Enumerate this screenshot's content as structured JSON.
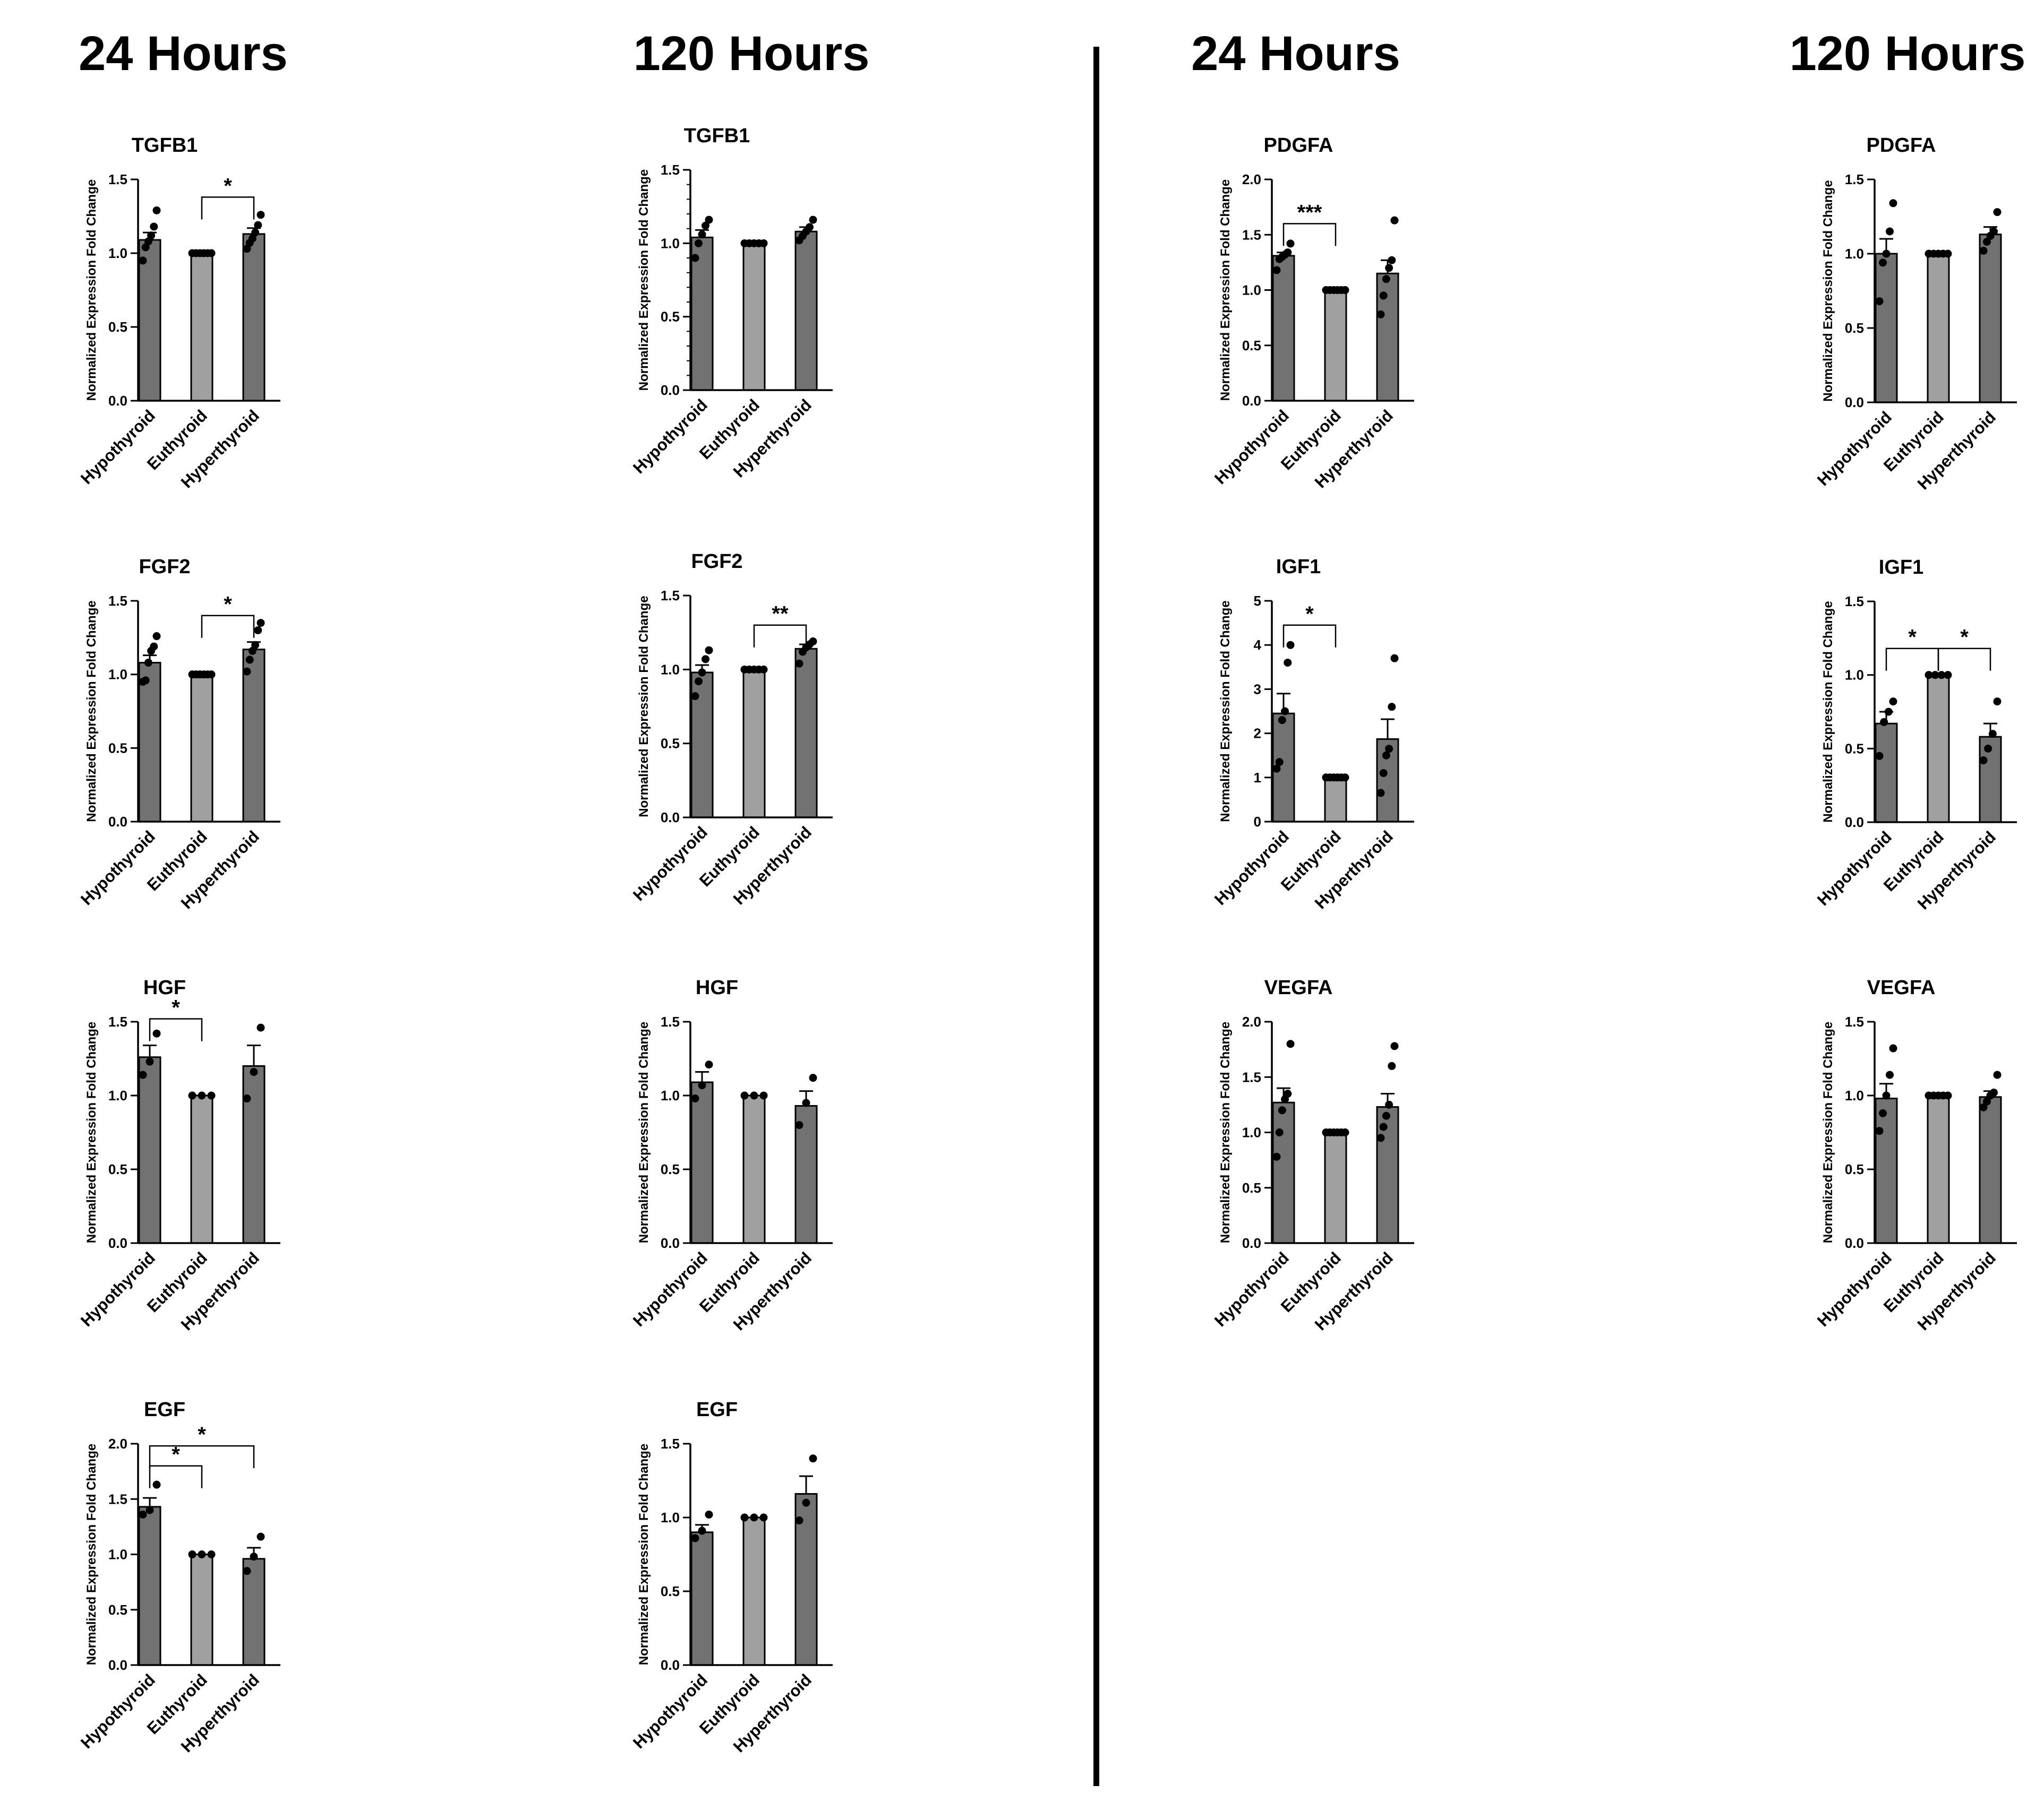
{
  "headers": [
    "24 Hours",
    "120 Hours",
    "24 Hours",
    "120 Hours"
  ],
  "colors": {
    "bar_dark": "#727272",
    "bar_light": "#a0a0a0",
    "ink": "#000000"
  },
  "chart_data": [
    {
      "type": "bar",
      "title": "TGFB1",
      "ylabel": "Normalized Expression Fold Change",
      "categories": [
        "Hypothyroid",
        "Euthyroid",
        "Hyperthyroid"
      ],
      "ylim": [
        0,
        1.5
      ],
      "yticks": [
        0.0,
        0.5,
        1.0,
        1.5
      ],
      "values": [
        1.09,
        1.0,
        1.13
      ],
      "errors": [
        0.05,
        0,
        0.04
      ],
      "points": [
        [
          0.95,
          1.04,
          1.08,
          1.12,
          1.18,
          1.29
        ],
        [
          1,
          1,
          1,
          1,
          1,
          1
        ],
        [
          1.03,
          1.07,
          1.1,
          1.14,
          1.19,
          1.26
        ]
      ],
      "sig": [
        {
          "from": 1,
          "to": 2,
          "label": "*",
          "level": 1.38
        }
      ]
    },
    {
      "type": "bar",
      "title": "TGFB1",
      "ylabel": "Normalized Expression Fold Change",
      "categories": [
        "Hypothyroid",
        "Euthyroid",
        "Hyperthyroid"
      ],
      "ylim": [
        0,
        1.5
      ],
      "yticks": [
        0.0,
        0.5,
        1.0,
        1.5
      ],
      "values": [
        1.04,
        1.0,
        1.08
      ],
      "errors": [
        0.05,
        0,
        0.03
      ],
      "points": [
        [
          0.9,
          1.0,
          1.06,
          1.12,
          1.16
        ],
        [
          1,
          1,
          1,
          1,
          1
        ],
        [
          1.02,
          1.05,
          1.08,
          1.11,
          1.16
        ]
      ],
      "sig": []
    },
    {
      "type": "bar",
      "title": "PDGFA",
      "ylabel": "Normalized Expression Fold Change",
      "categories": [
        "Hypothyroid",
        "Euthyroid",
        "Hyperthyroid"
      ],
      "ylim": [
        0,
        2.0
      ],
      "yticks": [
        0.0,
        0.5,
        1.0,
        1.5,
        2.0
      ],
      "values": [
        1.31,
        1.0,
        1.15
      ],
      "errors": [
        0.03,
        0,
        0.12
      ],
      "points": [
        [
          1.18,
          1.28,
          1.3,
          1.32,
          1.34,
          1.42
        ],
        [
          1,
          1,
          1,
          1,
          1,
          1
        ],
        [
          0.78,
          0.95,
          1.1,
          1.2,
          1.27,
          1.63
        ]
      ],
      "sig": [
        {
          "from": 0,
          "to": 1,
          "label": "***",
          "level": 1.6
        }
      ]
    },
    {
      "type": "bar",
      "title": "PDGFA",
      "ylabel": "Normalized Expression Fold Change",
      "categories": [
        "Hypothyroid",
        "Euthyroid",
        "Hyperthyroid"
      ],
      "ylim": [
        0,
        1.5
      ],
      "yticks": [
        0.0,
        0.5,
        1.0,
        1.5
      ],
      "values": [
        1.0,
        1.0,
        1.13
      ],
      "errors": [
        0.1,
        0,
        0.05
      ],
      "points": [
        [
          0.68,
          0.94,
          1.0,
          1.15,
          1.34
        ],
        [
          1,
          1,
          1,
          1,
          1
        ],
        [
          1.02,
          1.08,
          1.12,
          1.15,
          1.28
        ]
      ],
      "sig": []
    },
    {
      "type": "bar",
      "title": "FGF2",
      "ylabel": "Normalized Expression Fold Change",
      "categories": [
        "Hypothyroid",
        "Euthyroid",
        "Hyperthyroid"
      ],
      "ylim": [
        0,
        1.5
      ],
      "yticks": [
        0.0,
        0.5,
        1.0,
        1.5
      ],
      "values": [
        1.08,
        1.0,
        1.17
      ],
      "errors": [
        0.05,
        0,
        0.05
      ],
      "points": [
        [
          0.95,
          0.96,
          1.08,
          1.16,
          1.19,
          1.26
        ],
        [
          1,
          1,
          1,
          1,
          1,
          1
        ],
        [
          1.02,
          1.1,
          1.16,
          1.2,
          1.3,
          1.35
        ]
      ],
      "sig": [
        {
          "from": 1,
          "to": 2,
          "label": "*",
          "level": 1.4
        }
      ]
    },
    {
      "type": "bar",
      "title": "FGF2",
      "ylabel": "Normalized Expression Fold Change",
      "categories": [
        "Hypothyroid",
        "Euthyroid",
        "Hyperthyroid"
      ],
      "ylim": [
        0,
        1.5
      ],
      "yticks": [
        0.0,
        0.5,
        1.0,
        1.5
      ],
      "values": [
        0.98,
        1.0,
        1.14
      ],
      "errors": [
        0.05,
        0,
        0.03
      ],
      "points": [
        [
          0.82,
          0.92,
          0.98,
          1.07,
          1.13
        ],
        [
          1,
          1,
          1,
          1,
          1
        ],
        [
          1.04,
          1.12,
          1.15,
          1.17,
          1.19
        ]
      ],
      "sig": [
        {
          "from": 1,
          "to": 2,
          "label": "**",
          "level": 1.3
        }
      ]
    },
    {
      "type": "bar",
      "title": "IGF1",
      "ylabel": "Normalized Expression Fold Change",
      "categories": [
        "Hypothyroid",
        "Euthyroid",
        "Hyperthyroid"
      ],
      "ylim": [
        0,
        5
      ],
      "yticks": [
        0,
        1,
        2,
        3,
        4,
        5
      ],
      "values": [
        2.45,
        1.0,
        1.87
      ],
      "errors": [
        0.45,
        0,
        0.45
      ],
      "points": [
        [
          1.2,
          1.35,
          2.3,
          2.5,
          3.6,
          4.0
        ],
        [
          1,
          1,
          1,
          1,
          1,
          1
        ],
        [
          0.65,
          1.1,
          1.5,
          1.65,
          2.6,
          3.7
        ]
      ],
      "sig": [
        {
          "from": 0,
          "to": 1,
          "label": "*",
          "level": 4.45
        }
      ]
    },
    {
      "type": "bar",
      "title": "IGF1",
      "ylabel": "Normalized Expression Fold Change",
      "categories": [
        "Hypothyroid",
        "Euthyroid",
        "Hyperthyroid"
      ],
      "ylim": [
        0,
        1.5
      ],
      "yticks": [
        0.0,
        0.5,
        1.0,
        1.5
      ],
      "values": [
        0.67,
        1.0,
        0.58
      ],
      "errors": [
        0.08,
        0,
        0.09
      ],
      "points": [
        [
          0.45,
          0.68,
          0.75,
          0.82
        ],
        [
          1,
          1,
          1,
          1
        ],
        [
          0.42,
          0.5,
          0.6,
          0.82
        ]
      ],
      "sig": [
        {
          "from": 0,
          "to": 1,
          "label": "*",
          "level": 1.18
        },
        {
          "from": 1,
          "to": 2,
          "label": "*",
          "level": 1.18
        }
      ]
    },
    {
      "type": "bar",
      "title": "HGF",
      "ylabel": "Normalized Expression Fold Change",
      "categories": [
        "Hypothyroid",
        "Euthyroid",
        "Hyperthyroid"
      ],
      "ylim": [
        0,
        1.5
      ],
      "yticks": [
        0.0,
        0.5,
        1.0,
        1.5
      ],
      "values": [
        1.26,
        1.0,
        1.2
      ],
      "errors": [
        0.08,
        0,
        0.14
      ],
      "points": [
        [
          1.14,
          1.23,
          1.42
        ],
        [
          1,
          1,
          1
        ],
        [
          0.98,
          1.16,
          1.46
        ]
      ],
      "sig": [
        {
          "from": 0,
          "to": 1,
          "label": "*",
          "level": 1.52
        }
      ]
    },
    {
      "type": "bar",
      "title": "HGF",
      "ylabel": "Normalized Expression Fold Change",
      "categories": [
        "Hypothyroid",
        "Euthyroid",
        "Hyperthyroid"
      ],
      "ylim": [
        0,
        1.5
      ],
      "yticks": [
        0.0,
        0.5,
        1.0,
        1.5
      ],
      "values": [
        1.09,
        1.0,
        0.93
      ],
      "errors": [
        0.07,
        0,
        0.1
      ],
      "points": [
        [
          0.98,
          1.07,
          1.21
        ],
        [
          1,
          1,
          1
        ],
        [
          0.8,
          0.95,
          1.12
        ]
      ],
      "sig": []
    },
    {
      "type": "bar",
      "title": "VEGFA",
      "ylabel": "Normalized Expression Fold Change",
      "categories": [
        "Hypothyroid",
        "Euthyroid",
        "Hyperthyroid"
      ],
      "ylim": [
        0,
        2.0
      ],
      "yticks": [
        0.0,
        0.5,
        1.0,
        1.5,
        2.0
      ],
      "values": [
        1.27,
        1.0,
        1.23
      ],
      "errors": [
        0.13,
        0,
        0.12
      ],
      "points": [
        [
          0.78,
          1.0,
          1.2,
          1.3,
          1.35,
          1.8
        ],
        [
          1,
          1,
          1,
          1,
          1,
          1
        ],
        [
          0.95,
          1.05,
          1.15,
          1.25,
          1.6,
          1.78
        ]
      ],
      "sig": []
    },
    {
      "type": "bar",
      "title": "VEGFA",
      "ylabel": "Normalized Expression Fold Change",
      "categories": [
        "Hypothyroid",
        "Euthyroid",
        "Hyperthyroid"
      ],
      "ylim": [
        0,
        1.5
      ],
      "yticks": [
        0.0,
        0.5,
        1.0,
        1.5
      ],
      "values": [
        0.98,
        1.0,
        0.99
      ],
      "errors": [
        0.1,
        0,
        0.04
      ],
      "points": [
        [
          0.76,
          0.88,
          1.0,
          1.14,
          1.32
        ],
        [
          1,
          1,
          1,
          1,
          1
        ],
        [
          0.92,
          0.96,
          1.0,
          1.02,
          1.14
        ]
      ],
      "sig": []
    },
    {
      "type": "bar",
      "title": "EGF",
      "ylabel": "Normalized Expression Fold Change",
      "categories": [
        "Hypothyroid",
        "Euthyroid",
        "Hyperthyroid"
      ],
      "ylim": [
        0,
        2.0
      ],
      "yticks": [
        0.0,
        0.5,
        1.0,
        1.5,
        2.0
      ],
      "values": [
        1.43,
        1.0,
        0.96
      ],
      "errors": [
        0.08,
        0,
        0.1
      ],
      "points": [
        [
          1.36,
          1.4,
          1.63
        ],
        [
          1,
          1,
          1
        ],
        [
          0.85,
          0.98,
          1.16
        ]
      ],
      "sig": [
        {
          "from": 0,
          "to": 1,
          "label": "*",
          "level": 1.8
        },
        {
          "from": 0,
          "to": 2,
          "label": "*",
          "level": 1.98
        }
      ]
    },
    {
      "type": "bar",
      "title": "EGF",
      "ylabel": "Normalized Expression Fold Change",
      "categories": [
        "Hypothyroid",
        "Euthyroid",
        "Hyperthyroid"
      ],
      "ylim": [
        0,
        1.5
      ],
      "yticks": [
        0.0,
        0.5,
        1.0,
        1.5
      ],
      "values": [
        0.9,
        1.0,
        1.16
      ],
      "errors": [
        0.05,
        0,
        0.12
      ],
      "points": [
        [
          0.86,
          0.91,
          1.02
        ],
        [
          1,
          1,
          1
        ],
        [
          0.98,
          1.1,
          1.4
        ]
      ],
      "sig": []
    }
  ]
}
